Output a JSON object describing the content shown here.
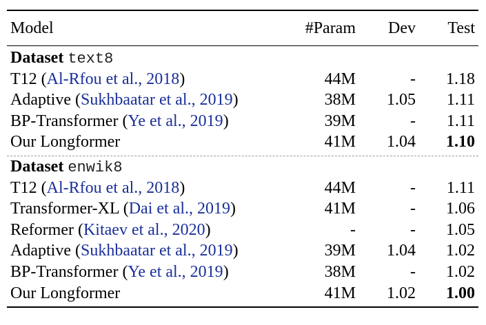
{
  "columns": {
    "model": "Model",
    "param": "#Param",
    "dev": "Dev",
    "test": "Test"
  },
  "sections": [
    {
      "label": "Dataset",
      "dataset": "text8",
      "rows": [
        {
          "name": "T12 ",
          "cite": "Al-Rfou et al., 2018",
          "param": "44M",
          "dev": "-",
          "test": "1.18",
          "best": false
        },
        {
          "name": "Adaptive ",
          "cite": "Sukhbaatar et al., 2019",
          "param": "38M",
          "dev": "1.05",
          "test": "1.11",
          "best": false
        },
        {
          "name": "BP-Transformer ",
          "cite": "Ye et al., 2019",
          "param": "39M",
          "dev": "-",
          "test": "1.11",
          "best": false
        },
        {
          "name": "Our Longformer",
          "cite": "",
          "param": "41M",
          "dev": "1.04",
          "test": "1.10",
          "best": true
        }
      ]
    },
    {
      "label": "Dataset",
      "dataset": "enwik8",
      "rows": [
        {
          "name": "T12 ",
          "cite": "Al-Rfou et al., 2018",
          "param": "44M",
          "dev": "-",
          "test": "1.11",
          "best": false
        },
        {
          "name": "Transformer-XL ",
          "cite": "Dai et al., 2019",
          "param": "41M",
          "dev": "-",
          "test": "1.06",
          "best": false
        },
        {
          "name": "Reformer ",
          "cite": "Kitaev et al., 2020",
          "param": "-",
          "dev": "-",
          "test": "1.05",
          "best": false
        },
        {
          "name": "Adaptive ",
          "cite": "Sukhbaatar et al., 2019",
          "param": "39M",
          "dev": "1.04",
          "test": "1.02",
          "best": false
        },
        {
          "name": "BP-Transformer ",
          "cite": "Ye et al., 2019",
          "param": "38M",
          "dev": "-",
          "test": "1.02",
          "best": false
        },
        {
          "name": "Our Longformer",
          "cite": "",
          "param": "41M",
          "dev": "1.02",
          "test": "1.00",
          "best": true
        }
      ]
    }
  ],
  "colors": {
    "citation": "#1a2f9a",
    "dashed_rule": "#9a9a9a"
  }
}
